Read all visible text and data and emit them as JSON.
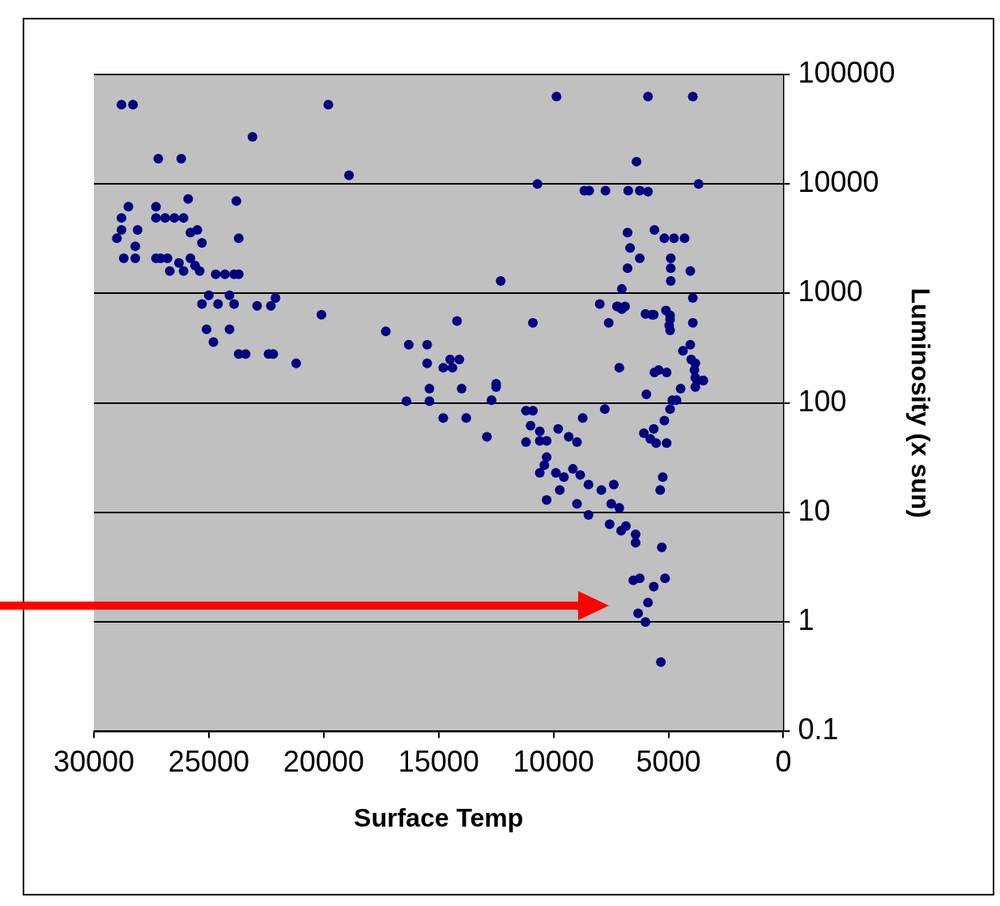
{
  "chart_data": {
    "type": "scatter",
    "xlabel": "Surface Temp",
    "ylabel": "Luminosity (x sun)",
    "xlim": [
      30000,
      0
    ],
    "xticks": [
      30000,
      25000,
      20000,
      15000,
      10000,
      5000,
      0
    ],
    "ylim": [
      0.1,
      100000
    ],
    "yticks": [
      0.1,
      1,
      10,
      100,
      1000,
      10000,
      100000
    ],
    "log": "y",
    "grid": "y",
    "legend": false,
    "marker": "circle",
    "series": [
      {
        "color": "#000080",
        "x": [
          28800,
          28300,
          27200,
          26200,
          23100,
          19800,
          18900,
          9870,
          5890,
          3940,
          6390,
          10700,
          3690,
          8660,
          8450,
          7740,
          6750,
          6250,
          5890,
          6780,
          5610,
          5180,
          4760,
          4300,
          6670,
          6250,
          6780,
          4900,
          4900,
          4050,
          4900,
          7030,
          12300,
          7030,
          7990,
          7240,
          6000,
          5720,
          5110,
          4930,
          4970,
          3940,
          3940,
          7600,
          14200,
          20100,
          10900,
          17300,
          25900,
          23800,
          28500,
          27300,
          28800,
          27300,
          26900,
          26500,
          26100,
          28800,
          28100,
          25800,
          25500,
          29000,
          25300,
          23700,
          28200,
          28700,
          28200,
          27300,
          27100,
          26800,
          26300,
          25800,
          25600,
          25400,
          26700,
          26100,
          24700,
          24300,
          23900,
          23700,
          25000,
          24100,
          22100,
          25300,
          24600,
          23900,
          22900,
          22300,
          25100,
          24100,
          24800,
          23700,
          23400,
          22400,
          22200,
          21200,
          16300,
          15500,
          15500,
          15400,
          14800,
          14400,
          14500,
          14100,
          14000,
          12500,
          7140,
          5430,
          5610,
          5080,
          4050,
          4010,
          3870,
          3760,
          3480,
          4470,
          5960,
          4370,
          3830,
          3830,
          3510,
          3830,
          4830,
          4650,
          4930,
          5180,
          5640,
          6070,
          5790,
          5540,
          5080,
          5250,
          5360,
          5290,
          5150,
          5640,
          6530,
          6250,
          5890,
          6320,
          6000,
          5330,
          16400,
          15400,
          12700,
          12500,
          14800,
          13800,
          12900,
          11200,
          10900,
          11000,
          10600,
          11200,
          10600,
          10300,
          9800,
          9340,
          8980,
          8730,
          7770,
          10300,
          10400,
          10600,
          9900,
          9550,
          9160,
          8840,
          10300,
          9730,
          8980,
          8480,
          7920,
          7380,
          7490,
          7140,
          8480,
          7560,
          6850,
          7060,
          6430,
          6430,
          4930,
          4930,
          5640,
          7210,
          6890
        ],
        "values": [
          53000,
          53000,
          17000,
          17000,
          27000,
          53000,
          12000,
          63000,
          63000,
          63000,
          16000,
          10000,
          10000,
          8700,
          8700,
          8700,
          8700,
          8700,
          8500,
          3600,
          3800,
          3200,
          3200,
          3200,
          2600,
          2100,
          1700,
          2100,
          1700,
          1600,
          1300,
          1100,
          1300,
          720,
          800,
          760,
          650,
          640,
          700,
          580,
          510,
          910,
          540,
          540,
          560,
          640,
          540,
          450,
          7300,
          7000,
          6200,
          6200,
          4900,
          4900,
          4900,
          4900,
          4900,
          3800,
          3800,
          3600,
          3800,
          3200,
          2900,
          3200,
          2700,
          2100,
          2100,
          2100,
          2100,
          2100,
          1900,
          2100,
          1800,
          1600,
          1600,
          1600,
          1500,
          1500,
          1500,
          1500,
          960,
          960,
          910,
          800,
          800,
          800,
          770,
          770,
          470,
          470,
          360,
          280,
          280,
          280,
          280,
          230,
          340,
          340,
          230,
          135,
          210,
          210,
          250,
          250,
          135,
          150,
          210,
          200,
          190,
          190,
          340,
          250,
          200,
          160,
          160,
          135,
          120,
          300,
          230,
          170,
          160,
          140,
          106,
          106,
          88,
          69,
          58,
          53,
          47,
          43,
          43,
          21,
          16,
          4.8,
          2.5,
          2.1,
          2.4,
          2.5,
          1.5,
          1.2,
          1,
          0.43,
          104,
          104,
          106,
          140,
          73,
          73,
          49,
          85,
          85,
          62,
          55,
          44,
          45,
          45,
          58,
          49,
          44,
          73,
          88,
          32,
          27,
          23,
          23,
          21,
          25,
          22,
          13,
          16,
          12,
          18,
          16,
          18,
          12,
          11,
          9.5,
          7.8,
          7.5,
          6.8,
          6.3,
          5.3,
          630,
          460,
          640,
          760,
          760
        ]
      }
    ]
  }
}
